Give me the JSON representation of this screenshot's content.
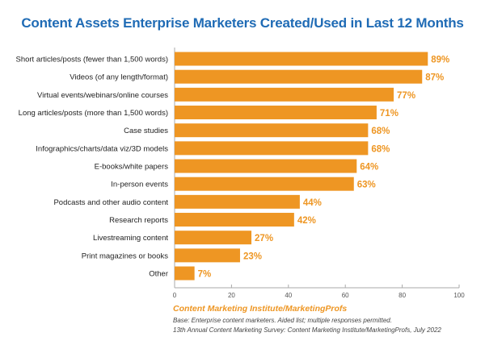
{
  "chart_data": {
    "type": "bar",
    "orientation": "horizontal",
    "title": "Content Assets Enterprise Marketers Created/Used in Last 12 Months",
    "categories": [
      "Short articles/posts (fewer than 1,500 words)",
      "Videos (of any length/format)",
      "Virtual events/webinars/online courses",
      "Long articles/posts (more than 1,500 words)",
      "Case studies",
      "Infographics/charts/data viz/3D models",
      "E-books/white papers",
      "In-person events",
      "Podcasts and other audio content",
      "Research reports",
      "Livestreaming content",
      "Print magazines or books",
      "Other"
    ],
    "values": [
      89,
      87,
      77,
      71,
      68,
      68,
      64,
      63,
      44,
      42,
      27,
      23,
      7
    ],
    "data_labels": [
      "89%",
      "87%",
      "77%",
      "71%",
      "68%",
      "68%",
      "64%",
      "63%",
      "44%",
      "42%",
      "27%",
      "23%",
      "7%"
    ],
    "xlim": [
      0,
      100
    ],
    "xticks": [
      0,
      20,
      40,
      60,
      80,
      100
    ],
    "grid": false,
    "bar_color": "#ee9623",
    "title_color": "#1f6bb5"
  },
  "footer": {
    "source": "Content Marketing Institute/MarketingProfs",
    "base": "Base: Enterprise content marketers. Aided list; multiple responses permitted.",
    "survey": "13th Annual Content Marketing Survey: Content Marketing Institute/MarketingProfs, July 2022"
  }
}
